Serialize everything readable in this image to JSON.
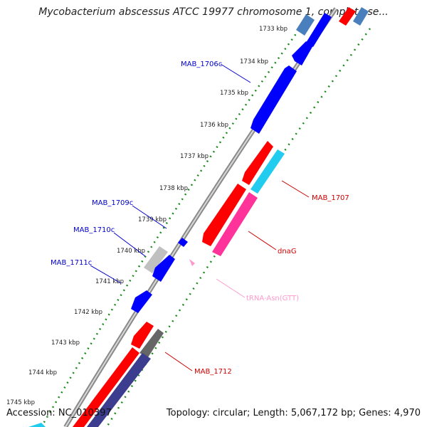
{
  "title": "Mycobacterium abscessus ATCC 19977 chromosome 1, complete se...",
  "accession": "Accession: NC_010397",
  "summary": "Topology: circular; Length: 5,067,172 bp; Genes: 4,970",
  "colors": {
    "forward_red": "#ff0000",
    "dark_gray": "#666666",
    "navy": "#3d3d8f",
    "cyan": "#22ccee",
    "magenta": "#ff3399",
    "light_gray": "#c0c0c0",
    "steel_blue": "#4a7fbd",
    "reverse_blue": "#0000ff",
    "label_blue": "#0000cc",
    "label_red": "#cc0000",
    "label_pink": "#ff99cc",
    "tick_green": "#1a8a1a"
  },
  "ticks": [
    "1733 kbp",
    "1734 kbp",
    "1735 kbp",
    "1736 kbp",
    "1737 kbp",
    "1738 kbp",
    "1739 kbp",
    "1740 kbp",
    "1741 kbp",
    "1742 kbp",
    "1743 kbp",
    "1744 kbp",
    "1745 kbp"
  ],
  "gene_labels": {
    "mab_1706c": "MAB_1706c",
    "mab_1707": "MAB_1707",
    "mab_1709c": "MAB_1709c",
    "mab_1710c": "MAB_1710c",
    "mab_1711c": "MAB_1711c",
    "dnaG": "dnaG",
    "trna_asn": "tRNA-Asn(GTT)",
    "mab_1712": "MAB_1712"
  }
}
